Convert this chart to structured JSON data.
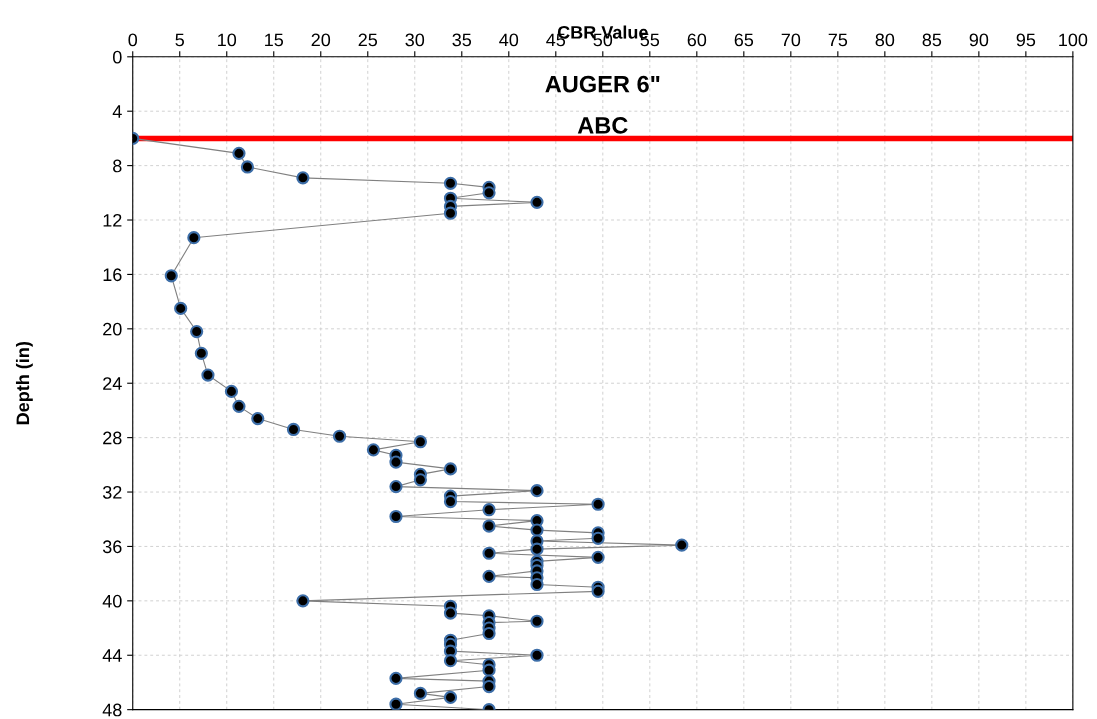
{
  "chart_data": {
    "type": "line",
    "title": "AUGER 6\"",
    "xlabel": "CBR Value",
    "ylabel": "Depth (in)",
    "xlim": [
      0,
      100
    ],
    "xticks": [
      0,
      5,
      10,
      15,
      20,
      25,
      30,
      35,
      40,
      45,
      50,
      55,
      60,
      65,
      70,
      75,
      80,
      85,
      90,
      95,
      100
    ],
    "ylim": [
      48,
      0
    ],
    "yticks": [
      0,
      4,
      8,
      12,
      16,
      20,
      24,
      28,
      32,
      36,
      40,
      44,
      48
    ],
    "grid": true,
    "marker": "circle",
    "line_style": "solid",
    "ref_lines": [
      {
        "axis": "y",
        "value": 6,
        "label": "ABC",
        "color": "#ff0000"
      }
    ],
    "series": [
      {
        "color": "#000000",
        "x": [
          0,
          11.3,
          12.2,
          18.1,
          33.8,
          37.9,
          37.9,
          33.8,
          43,
          33.8,
          33.8,
          6.5,
          4.1,
          5.1,
          6.8,
          7.3,
          8.0,
          10.5,
          11.3,
          13.3,
          17.1,
          22.0,
          30.6,
          25.6,
          28.0,
          28.0,
          33.8,
          30.6,
          30.6,
          28.0,
          43,
          33.8,
          33.8,
          49.5,
          37.9,
          28.0,
          43,
          37.9,
          43,
          49.5,
          49.5,
          43,
          58.4,
          43,
          37.9,
          49.5,
          43,
          43,
          43,
          37.9,
          43,
          43,
          49.5,
          49.5,
          18.1,
          33.8,
          33.8,
          37.9,
          43,
          37.9,
          37.9,
          37.9,
          33.8,
          33.8,
          33.8,
          43,
          33.8,
          37.9,
          37.9,
          28.0,
          37.9,
          37.9,
          30.6,
          33.8,
          28.0,
          37.9
        ],
        "values": [
          6.0,
          7.1,
          8.1,
          8.9,
          9.3,
          9.6,
          10.0,
          10.4,
          10.7,
          11.0,
          11.5,
          13.3,
          16.1,
          18.5,
          20.2,
          21.8,
          23.4,
          24.6,
          25.7,
          26.6,
          27.4,
          27.9,
          28.3,
          28.9,
          29.3,
          29.8,
          30.3,
          30.7,
          31.1,
          31.6,
          31.9,
          32.3,
          32.7,
          32.9,
          33.3,
          33.8,
          34.1,
          34.5,
          34.8,
          35.0,
          35.4,
          35.6,
          35.9,
          36.2,
          36.5,
          36.8,
          37.1,
          37.4,
          37.8,
          38.2,
          38.3,
          38.8,
          39.0,
          39.3,
          40.0,
          40.4,
          40.9,
          41.1,
          41.5,
          41.6,
          42.0,
          42.4,
          42.9,
          43.2,
          43.7,
          44.0,
          44.4,
          44.7,
          45.1,
          45.7,
          45.9,
          46.3,
          46.8,
          47.1,
          47.6,
          48.0
        ]
      }
    ]
  }
}
